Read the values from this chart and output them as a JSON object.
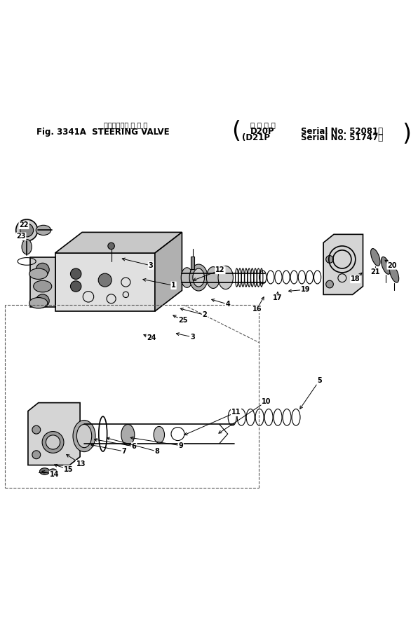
{
  "title_line1": "ステアリング バ ル ブ",
  "title_line2": "Fig. 3341A  STEERING VALVE",
  "title_right1": "適 用 号 機",
  "title_right2": "Serial No. 52081〜",
  "title_right3": "Serial No. 51747〜",
  "title_d20p": "D20P",
  "title_d21p": "(D21P",
  "bg_color": "#ffffff",
  "line_color": "#000000",
  "text_color": "#000000",
  "fig_width": 5.96,
  "fig_height": 9.06,
  "dpi": 100
}
